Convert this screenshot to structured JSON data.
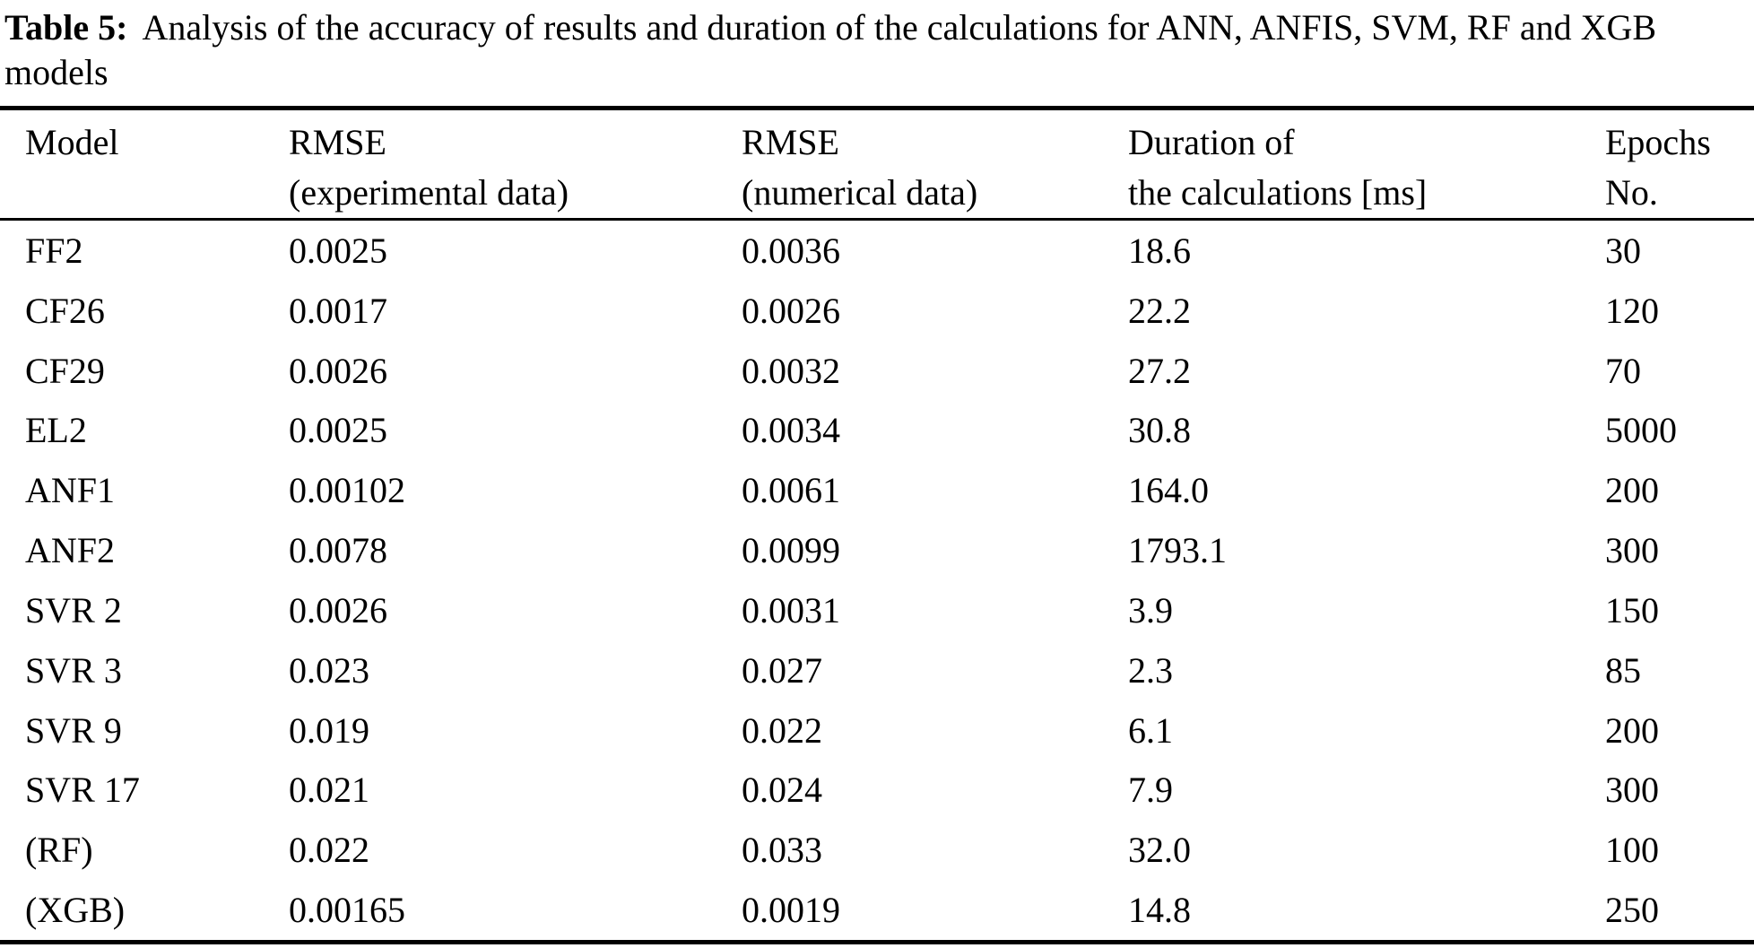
{
  "table": {
    "caption_label": "Table 5:",
    "caption_text": "Analysis of the accuracy of results and duration of the calculations for ANN, ANFIS, SVM, RF and XGB models",
    "columns": [
      {
        "line1": "Model",
        "line2": ""
      },
      {
        "line1": "RMSE",
        "line2": "(experimental data)"
      },
      {
        "line1": "RMSE",
        "line2": "(numerical data)"
      },
      {
        "line1": "Duration of",
        "line2": "the calculations [ms]"
      },
      {
        "line1": "Epochs",
        "line2": "No."
      }
    ],
    "rows": [
      [
        "FF2",
        "0.0025",
        "0.0036",
        "18.6",
        "30"
      ],
      [
        "CF26",
        "0.0017",
        "0.0026",
        "22.2",
        "120"
      ],
      [
        "CF29",
        "0.0026",
        "0.0032",
        "27.2",
        "70"
      ],
      [
        "EL2",
        "0.0025",
        "0.0034",
        "30.8",
        "5000"
      ],
      [
        "ANF1",
        "0.00102",
        "0.0061",
        "164.0",
        "200"
      ],
      [
        "ANF2",
        "0.0078",
        "0.0099",
        "1793.1",
        "300"
      ],
      [
        "SVR 2",
        "0.0026",
        "0.0031",
        "3.9",
        "150"
      ],
      [
        "SVR 3",
        "0.023",
        "0.027",
        "2.3",
        "85"
      ],
      [
        "SVR 9",
        "0.019",
        "0.022",
        "6.1",
        "200"
      ],
      [
        "SVR 17",
        "0.021",
        "0.024",
        "7.9",
        "300"
      ],
      [
        "(RF)",
        "0.022",
        "0.033",
        "32.0",
        "100"
      ],
      [
        "(XGB)",
        "0.00165",
        "0.0019",
        "14.8",
        "250"
      ]
    ],
    "colors": {
      "text": "#000000",
      "background": "#ffffff",
      "rule": "#000000"
    }
  }
}
